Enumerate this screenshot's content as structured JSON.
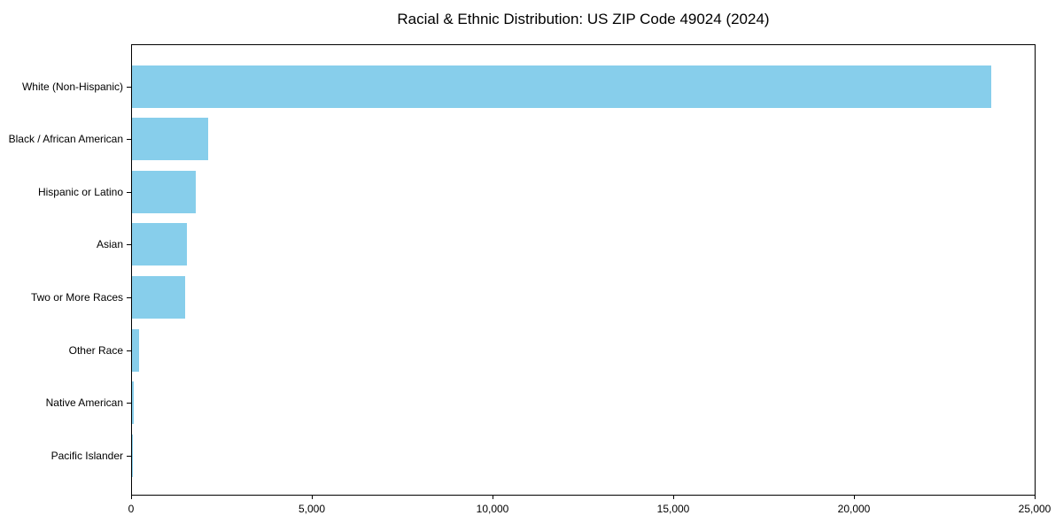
{
  "chart_data": {
    "type": "bar",
    "orientation": "horizontal",
    "title": "Racial & Ethnic Distribution: US ZIP Code 49024 (2024)",
    "categories": [
      "White (Non-Hispanic)",
      "Black / African American",
      "Hispanic or Latino",
      "Asian",
      "Two or More Races",
      "Other Race",
      "Native American",
      "Pacific Islander"
    ],
    "values": [
      23800,
      2100,
      1770,
      1530,
      1480,
      200,
      40,
      10
    ],
    "xlabel": "",
    "ylabel": "",
    "xlim": [
      0,
      25000
    ],
    "xticks": [
      0,
      5000,
      10000,
      15000,
      20000,
      25000
    ],
    "xtick_labels": [
      "0",
      "5,000",
      "10,000",
      "15,000",
      "20,000",
      "25,000"
    ],
    "bar_color": "#87CEEB",
    "grid": false,
    "legend": "none",
    "spine_color": "#000000"
  }
}
